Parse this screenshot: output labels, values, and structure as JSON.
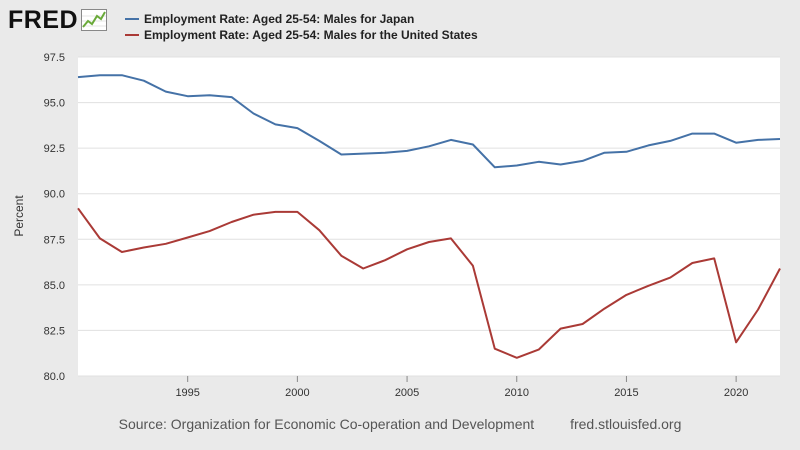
{
  "header": {
    "logo_text": "FRED",
    "logo_icon": "fred-graph-logo-icon",
    "legend": [
      {
        "label": "Employment Rate: Aged 25-54: Males for Japan",
        "color": "#4572a7"
      },
      {
        "label": "Employment Rate: Aged 25-54: Males for the United States",
        "color": "#aa3a36"
      }
    ]
  },
  "footer": {
    "source": "Source: Organization for Economic Co-operation and Development",
    "url": "fred.stlouisfed.org"
  },
  "chart_data": {
    "type": "line",
    "title": "",
    "xlabel": "",
    "ylabel": "Percent",
    "xlim": [
      1990,
      2022
    ],
    "ylim": [
      80.0,
      97.5
    ],
    "yticks": [
      "80.0",
      "82.5",
      "85.0",
      "87.5",
      "90.0",
      "92.5",
      "95.0",
      "97.5"
    ],
    "xticks": [
      "1995",
      "2000",
      "2005",
      "2010",
      "2015",
      "2020"
    ],
    "grid": true,
    "legend_position": "top",
    "x": [
      1990,
      1991,
      1992,
      1993,
      1994,
      1995,
      1996,
      1997,
      1998,
      1999,
      2000,
      2001,
      2002,
      2003,
      2004,
      2005,
      2006,
      2007,
      2008,
      2009,
      2010,
      2011,
      2012,
      2013,
      2014,
      2015,
      2016,
      2017,
      2018,
      2019,
      2020,
      2021,
      2022
    ],
    "series": [
      {
        "name": "Employment Rate: Aged 25-54: Males for Japan",
        "color": "#4572a7",
        "values": [
          96.4,
          96.5,
          96.5,
          96.2,
          95.6,
          95.35,
          95.4,
          95.3,
          94.4,
          93.8,
          93.6,
          92.9,
          92.15,
          92.2,
          92.25,
          92.35,
          92.6,
          92.95,
          92.7,
          91.45,
          91.55,
          91.75,
          91.6,
          91.8,
          92.25,
          92.3,
          92.65,
          92.9,
          93.3,
          93.3,
          92.8,
          92.95,
          93.0
        ]
      },
      {
        "name": "Employment Rate: Aged 25-54: Males for the United States",
        "color": "#aa3a36",
        "values": [
          89.2,
          87.55,
          86.8,
          87.05,
          87.25,
          87.6,
          87.95,
          88.45,
          88.85,
          89.0,
          89.0,
          88.0,
          86.6,
          85.9,
          86.35,
          86.95,
          87.35,
          87.55,
          86.05,
          81.5,
          81.0,
          81.45,
          82.6,
          82.85,
          83.7,
          84.45,
          84.95,
          85.4,
          86.2,
          86.45,
          81.85,
          83.65,
          85.9
        ]
      }
    ]
  }
}
